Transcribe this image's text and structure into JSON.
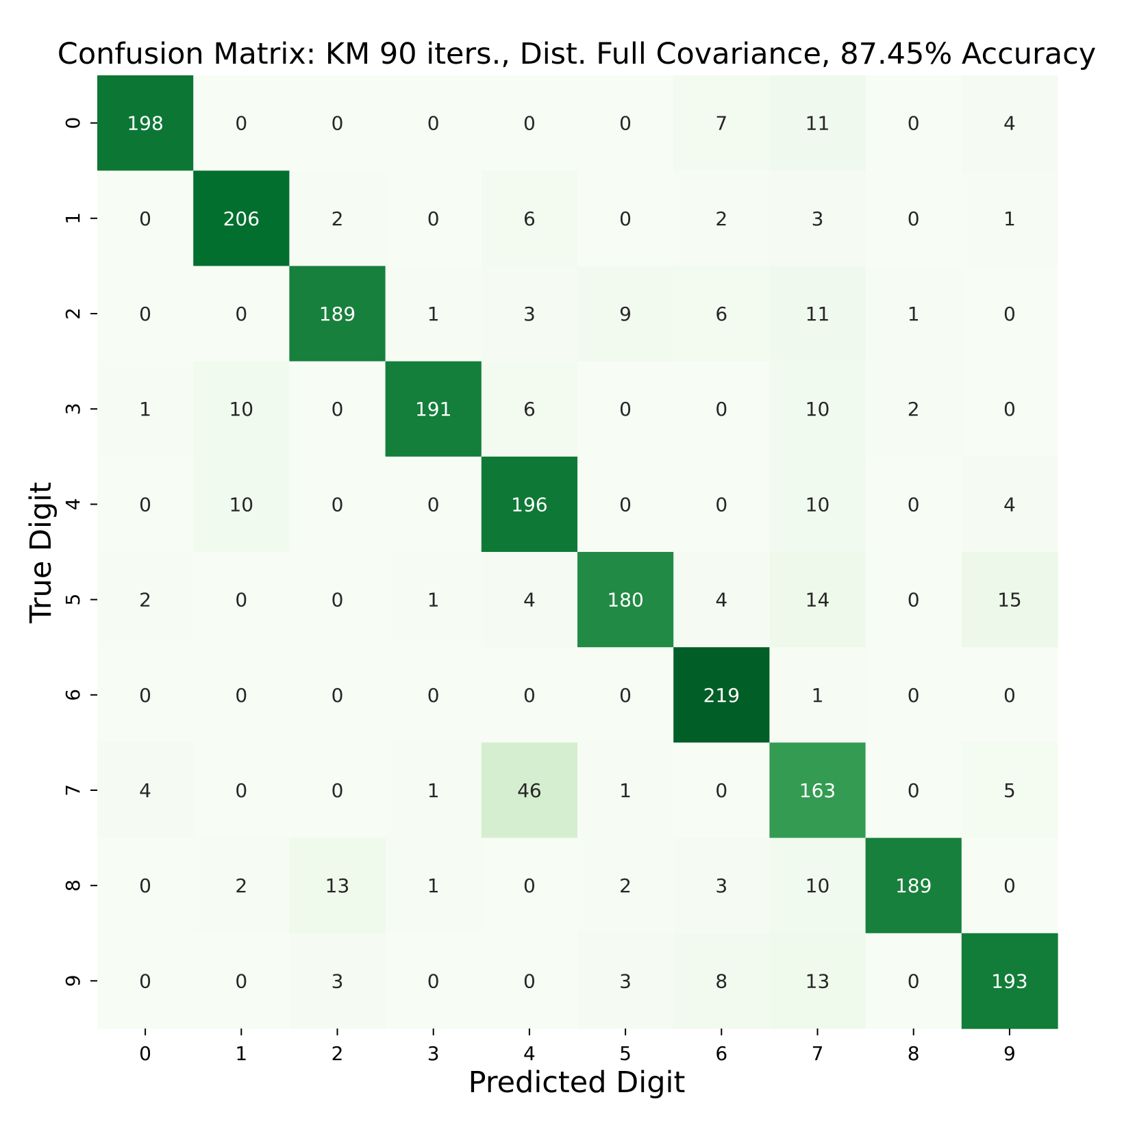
{
  "chart_data": {
    "type": "heatmap",
    "title": "Confusion Matrix: KM 90 iters., Dist. Full Covariance, 87.45% Accuracy",
    "xlabel": "Predicted Digit",
    "ylabel": "True Digit",
    "x_categories": [
      "0",
      "1",
      "2",
      "3",
      "4",
      "5",
      "6",
      "7",
      "8",
      "9"
    ],
    "y_categories": [
      "0",
      "1",
      "2",
      "3",
      "4",
      "5",
      "6",
      "7",
      "8",
      "9"
    ],
    "values": [
      [
        198,
        0,
        0,
        0,
        0,
        0,
        7,
        11,
        0,
        4
      ],
      [
        0,
        206,
        2,
        0,
        6,
        0,
        2,
        3,
        0,
        1
      ],
      [
        0,
        0,
        189,
        1,
        3,
        9,
        6,
        11,
        1,
        0
      ],
      [
        1,
        10,
        0,
        191,
        6,
        0,
        0,
        10,
        2,
        0
      ],
      [
        0,
        10,
        0,
        0,
        196,
        0,
        0,
        10,
        0,
        4
      ],
      [
        2,
        0,
        0,
        1,
        4,
        180,
        4,
        14,
        0,
        15
      ],
      [
        0,
        0,
        0,
        0,
        0,
        0,
        219,
        1,
        0,
        0
      ],
      [
        4,
        0,
        0,
        1,
        46,
        1,
        0,
        163,
        0,
        5
      ],
      [
        0,
        2,
        13,
        1,
        0,
        2,
        3,
        10,
        189,
        0
      ],
      [
        0,
        0,
        3,
        0,
        0,
        3,
        8,
        13,
        0,
        193
      ]
    ],
    "colormap": "Greens",
    "colorbar": false,
    "grid": false
  }
}
